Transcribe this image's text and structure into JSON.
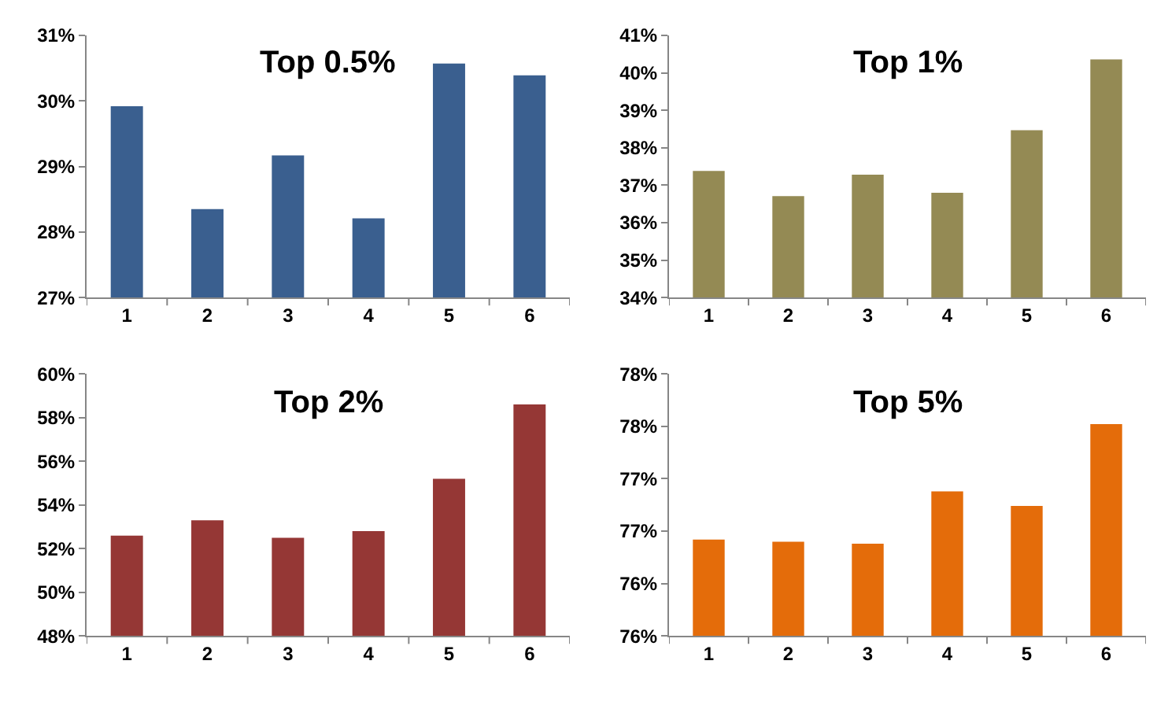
{
  "chart_data": [
    {
      "type": "bar",
      "title": "Top 0.5%",
      "categories": [
        "1",
        "2",
        "3",
        "4",
        "5",
        "6"
      ],
      "values": [
        29.92,
        28.35,
        29.17,
        28.21,
        30.57,
        30.39
      ],
      "color": "#3a5f8f",
      "ylim": [
        27,
        31
      ],
      "yticks": [
        {
          "value": 27,
          "label": "27%"
        },
        {
          "value": 28,
          "label": "28%"
        },
        {
          "value": 29,
          "label": "29%"
        },
        {
          "value": 30,
          "label": "30%"
        },
        {
          "value": 31,
          "label": "31%"
        }
      ],
      "grid": false,
      "legend": false
    },
    {
      "type": "bar",
      "title": "Top 1%",
      "categories": [
        "1",
        "2",
        "3",
        "4",
        "5",
        "6"
      ],
      "values": [
        37.38,
        36.71,
        37.28,
        36.8,
        38.47,
        40.36
      ],
      "color": "#948a54",
      "ylim": [
        34,
        41
      ],
      "yticks": [
        {
          "value": 34,
          "label": "34%"
        },
        {
          "value": 35,
          "label": "35%"
        },
        {
          "value": 36,
          "label": "36%"
        },
        {
          "value": 37,
          "label": "37%"
        },
        {
          "value": 38,
          "label": "38%"
        },
        {
          "value": 39,
          "label": "39%"
        },
        {
          "value": 40,
          "label": "40%"
        },
        {
          "value": 41,
          "label": "41%"
        }
      ],
      "grid": false,
      "legend": false
    },
    {
      "type": "bar",
      "title": "Top 2%",
      "categories": [
        "1",
        "2",
        "3",
        "4",
        "5",
        "6"
      ],
      "values": [
        52.6,
        53.3,
        52.5,
        52.8,
        55.2,
        58.6
      ],
      "color": "#953735",
      "ylim": [
        48,
        60
      ],
      "yticks": [
        {
          "value": 48,
          "label": "48%"
        },
        {
          "value": 50,
          "label": "50%"
        },
        {
          "value": 52,
          "label": "52%"
        },
        {
          "value": 54,
          "label": "54%"
        },
        {
          "value": 56,
          "label": "56%"
        },
        {
          "value": 58,
          "label": "58%"
        },
        {
          "value": 60,
          "label": "60%"
        }
      ],
      "grid": false,
      "legend": false
    },
    {
      "type": "bar",
      "title": "Top 5%",
      "categories": [
        "1",
        "2",
        "3",
        "4",
        "5",
        "6"
      ],
      "values": [
        76.42,
        76.4,
        76.38,
        76.88,
        76.74,
        77.52
      ],
      "color": "#e46c0a",
      "ylim": [
        75.5,
        78
      ],
      "yticks": [
        {
          "value": 75.5,
          "label": "76%"
        },
        {
          "value": 76,
          "label": "76%"
        },
        {
          "value": 76.5,
          "label": "77%"
        },
        {
          "value": 77,
          "label": "77%"
        },
        {
          "value": 77.5,
          "label": "78%"
        },
        {
          "value": 78,
          "label": "78%"
        }
      ],
      "grid": false,
      "legend": false
    }
  ]
}
